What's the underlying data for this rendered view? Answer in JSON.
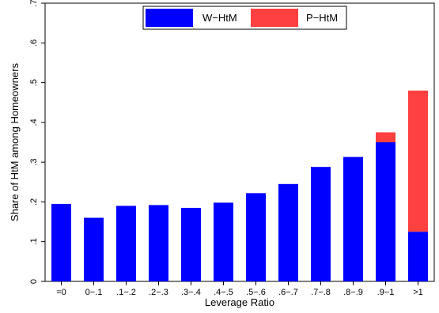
{
  "chart_data": {
    "type": "bar",
    "stacked": true,
    "title": "",
    "xlabel": "Leverage Ratio",
    "ylabel": "Share of HtM among Homeowners",
    "ylim": [
      0,
      0.7
    ],
    "yticks": [
      0,
      0.1,
      0.2,
      0.3,
      0.4,
      0.5,
      0.6,
      0.7
    ],
    "ytick_labels": [
      "0",
      ".1",
      ".2",
      ".3",
      ".4",
      ".5",
      ".6",
      ".7"
    ],
    "categories": [
      "=0",
      "0−.1",
      ".1−.2",
      ".2−.3",
      ".3−.4",
      ".4−.5",
      ".5−.6",
      ".6−.7",
      ".7−.8",
      ".8−.9",
      ".9−1",
      ">1"
    ],
    "series": [
      {
        "name": "W−HtM",
        "color": "#0000ff",
        "values": [
          0.195,
          0.16,
          0.19,
          0.192,
          0.185,
          0.198,
          0.222,
          0.245,
          0.288,
          0.313,
          0.35,
          0.125
        ]
      },
      {
        "name": "P−HtM",
        "color": "#ff4040",
        "values": [
          0,
          0,
          0,
          0,
          0,
          0,
          0,
          0,
          0,
          0,
          0.025,
          0.355
        ]
      }
    ],
    "grid": false,
    "legend_position": "top-center"
  }
}
